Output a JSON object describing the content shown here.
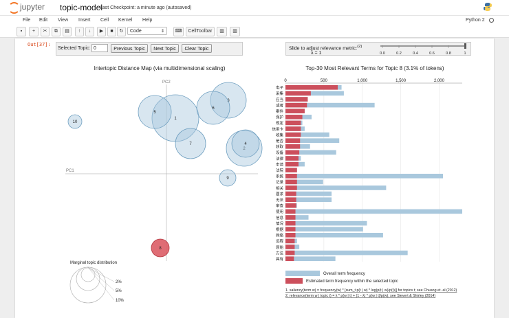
{
  "header": {
    "logo_text": "jupyter",
    "notebook_title": "topic-model",
    "checkpoint": "Last Checkpoint: a minute ago (autosaved)"
  },
  "menu": {
    "items": [
      "File",
      "Edit",
      "View",
      "Insert",
      "Cell",
      "Kernel",
      "Help"
    ],
    "kernel": "Python 2"
  },
  "toolbar": {
    "cell_type": "Code",
    "celltoolbar_label": "CellToolbar"
  },
  "output": {
    "prompt": "Out[37]:",
    "selected_topic_label": "Selected Topic:",
    "selected_topic_value": "0",
    "prev_label": "Previous Topic",
    "next_label": "Next Topic",
    "clear_label": "Clear Topic",
    "slider_label": "Slide to adjust relevance metric:",
    "slider_ref": "(2)",
    "lambda_label": "λ = 1",
    "slider_value": 1,
    "slider_ticks": [
      "0.0",
      "0.2",
      "0.4",
      "0.6",
      "0.8",
      "1"
    ]
  },
  "intertopic": {
    "title": "Intertopic Distance Map (via multidimensional scaling)",
    "pc1_label": "PC1",
    "pc2_label": "PC2",
    "topics": [
      {
        "id": "1",
        "size": 1.0,
        "selected": false
      },
      {
        "id": "2",
        "size": 0.8,
        "selected": false
      },
      {
        "id": "3",
        "size": 0.7,
        "selected": false
      },
      {
        "id": "4",
        "size": 0.55,
        "selected": false
      },
      {
        "id": "5",
        "size": 0.65,
        "selected": false
      },
      {
        "id": "6",
        "size": 0.6,
        "selected": false
      },
      {
        "id": "7",
        "size": 0.5,
        "selected": false
      },
      {
        "id": "8",
        "size": 0.3,
        "selected": true
      },
      {
        "id": "9",
        "size": 0.25,
        "selected": false
      },
      {
        "id": "10",
        "size": 0.2,
        "selected": false
      }
    ],
    "marginal_title": "Marginal topic distribution",
    "marginal_labels": [
      "2%",
      "5%",
      "10%"
    ]
  },
  "terms_chart": {
    "title": "Top-30 Most Relevant Terms for Topic 8 (3.1% of tokens)",
    "axis_ticks": [
      "0",
      "500",
      "1,000",
      "1,500",
      "2,000"
    ],
    "legend_overall": "Overall term frequency",
    "legend_estimated": "Estimated term frequency within the selected topic",
    "footnote1": "1. saliency(term w) = frequency(w) * [sum_t p(t | w) * log(p(t | w)/p(t))] for topics t; see Chuang et. al (2012)",
    "footnote2": "2. relevance(term w | topic t) = λ * p(w | t) + (1 - λ) * p(w | t)/p(w); see Sievert & Shirley (2014)",
    "colors": {
      "overall": "#a9c8dd",
      "estimated": "#cc4f5c"
    }
  },
  "chart_data": {
    "type": "bar",
    "title": "Top-30 Most Relevant Terms for Topic 8 (3.1% of tokens)",
    "categories": [
      "电子",
      "采集",
      "应当",
      "或者",
      "案件",
      "保护",
      "规定",
      "信用卡",
      "收集",
      "是否",
      "获取",
      "设备",
      "法律",
      "申请",
      "法院",
      "系统",
      "记录",
      "相关",
      "要求",
      "无法",
      "审查",
      "使用",
      "信息",
      "情况",
      "根据",
      "网络",
      "远程",
      "原始",
      "方法",
      "具有"
    ],
    "series": [
      {
        "name": "Overall term frequency",
        "values": [
          730,
          760,
          290,
          1160,
          250,
          340,
          220,
          250,
          570,
          700,
          320,
          660,
          200,
          250,
          150,
          2050,
          490,
          1310,
          600,
          600,
          150,
          2300,
          300,
          1060,
          1010,
          1270,
          150,
          180,
          1590,
          650
        ]
      },
      {
        "name": "Estimated term frequency within the selected topic",
        "values": [
          680,
          330,
          290,
          280,
          250,
          220,
          200,
          200,
          200,
          190,
          190,
          180,
          170,
          170,
          150,
          150,
          150,
          150,
          140,
          140,
          140,
          130,
          130,
          130,
          130,
          130,
          120,
          120,
          120,
          110
        ]
      }
    ],
    "xlim": [
      0,
      2300
    ],
    "legend": "bottom-left"
  }
}
